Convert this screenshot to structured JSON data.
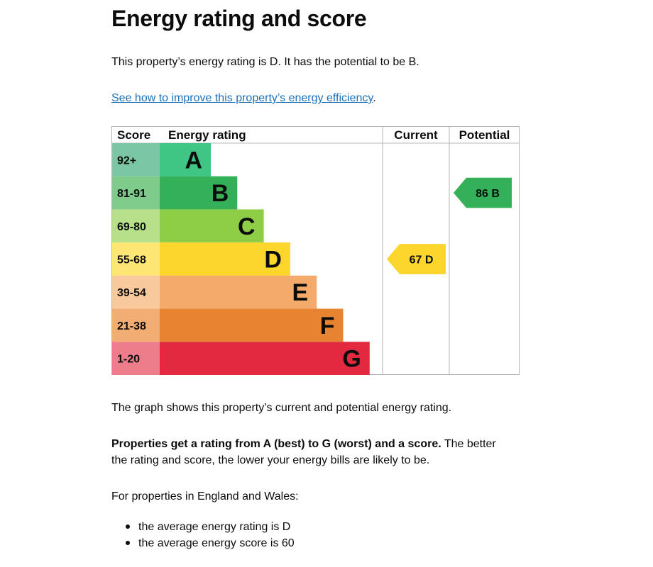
{
  "heading": "Energy rating and score",
  "intro": "This property’s energy rating is D. It has the potential to be B.",
  "improve_link": "See how to improve this property’s energy efficiency",
  "improve_link_suffix": ".",
  "chart_data": {
    "type": "table",
    "headers": {
      "score": "Score",
      "rating": "Energy rating",
      "current": "Current",
      "potential": "Potential"
    },
    "bands": [
      {
        "score": "92+",
        "letter": "A",
        "band_color": "#008054",
        "score_color": "#19b459"
      },
      {
        "score": "81-91",
        "letter": "B",
        "band_color": "#19b459",
        "score_color": "#8dce46"
      },
      {
        "score": "69-80",
        "letter": "C",
        "band_color": "#8dce46",
        "score_color": "#ffd500"
      },
      {
        "score": "55-68",
        "letter": "D",
        "band_color": "#ffd500",
        "score_color": "#fcaa65"
      },
      {
        "score": "39-54",
        "letter": "E",
        "band_color": "#fcaa65",
        "score_color": "#ef8023"
      },
      {
        "score": "21-38",
        "letter": "F",
        "band_color": "#ef8023",
        "score_color": "#e9153b"
      },
      {
        "score": "1-20",
        "letter": "G",
        "band_color": "#e9153b",
        "score_color": "#e9153b"
      }
    ],
    "current": {
      "score": 67,
      "letter": "D",
      "label": "67  D",
      "color": "#ffd500"
    },
    "potential": {
      "score": 86,
      "letter": "B",
      "label": "86  B",
      "color": "#19b459"
    }
  },
  "graph_caption": "The graph shows this property’s current and potential energy rating.",
  "rating_bold": "Properties get a rating from A (best) to G (worst) and a score.",
  "rating_rest_1": " The better",
  "rating_rest_2": "the rating and score, the lower your energy bills are likely to be.",
  "region_intro": "For properties in England and Wales:",
  "averages": [
    "the average energy rating is D",
    "the average energy score is 60"
  ]
}
